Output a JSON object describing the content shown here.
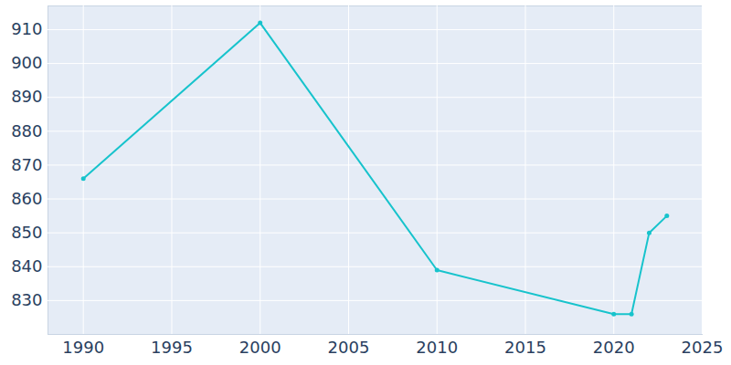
{
  "chart_data": {
    "type": "line",
    "x": [
      1990,
      2000,
      2010,
      2020,
      2021,
      2022,
      2023
    ],
    "values": [
      866,
      912,
      839,
      826,
      826,
      850,
      855
    ],
    "color": "#17c3cc",
    "marker": "circle",
    "xlim": [
      1988,
      2025
    ],
    "ylim": [
      820,
      917
    ],
    "xticks": [
      1990,
      1995,
      2000,
      2005,
      2010,
      2015,
      2020,
      2025
    ],
    "yticks": [
      830,
      840,
      850,
      860,
      870,
      880,
      890,
      900,
      910
    ],
    "grid": true
  }
}
